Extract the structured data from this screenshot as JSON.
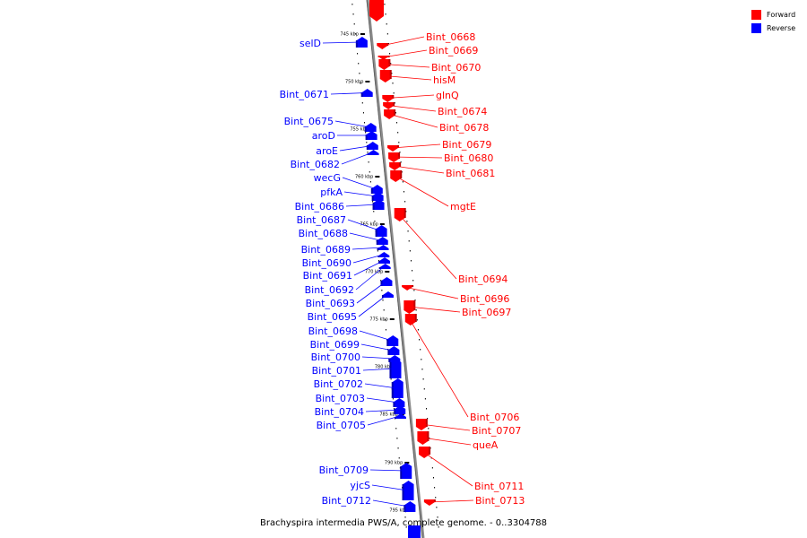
{
  "caption": "Brachyspira intermedia PWS/A, complete genome. - 0..3304788",
  "legend": [
    {
      "label": "Forward",
      "color": "#ff0000"
    },
    {
      "label": "Reverse",
      "color": "#0000ff"
    }
  ],
  "colors": {
    "forward": "#ff0000",
    "reverse": "#0000ff",
    "axis": "#8c8c8c"
  },
  "kbp_labels": [
    "745 kbp",
    "750 kbp",
    "755 kbp",
    "760 kbp",
    "765 kbp",
    "770 kbp",
    "775 kbp",
    "780 kbp",
    "785 kbp",
    "790 kbp",
    "795 kbp"
  ],
  "forward_genes": [
    "Bint_0668",
    "Bint_0669",
    "Bint_0670",
    "hisM",
    "glnQ",
    "Bint_0674",
    "Bint_0678",
    "Bint_0679",
    "Bint_0680",
    "Bint_0681",
    "mgtE",
    "Bint_0694",
    "Bint_0696",
    "Bint_0697",
    "Bint_0706",
    "Bint_0707",
    "queA",
    "Bint_0711",
    "Bint_0713"
  ],
  "reverse_genes": [
    "selD",
    "Bint_0671",
    "Bint_0675",
    "aroD",
    "aroE",
    "Bint_0682",
    "wecG",
    "pfkA",
    "Bint_0686",
    "Bint_0687",
    "Bint_0688",
    "Bint_0689",
    "Bint_0690",
    "Bint_0691",
    "Bint_0692",
    "Bint_0693",
    "Bint_0695",
    "Bint_0698",
    "Bint_0699",
    "Bint_0700",
    "Bint_0701",
    "Bint_0702",
    "Bint_0703",
    "Bint_0704",
    "Bint_0705",
    "Bint_0709",
    "yjcS",
    "Bint_0712"
  ]
}
